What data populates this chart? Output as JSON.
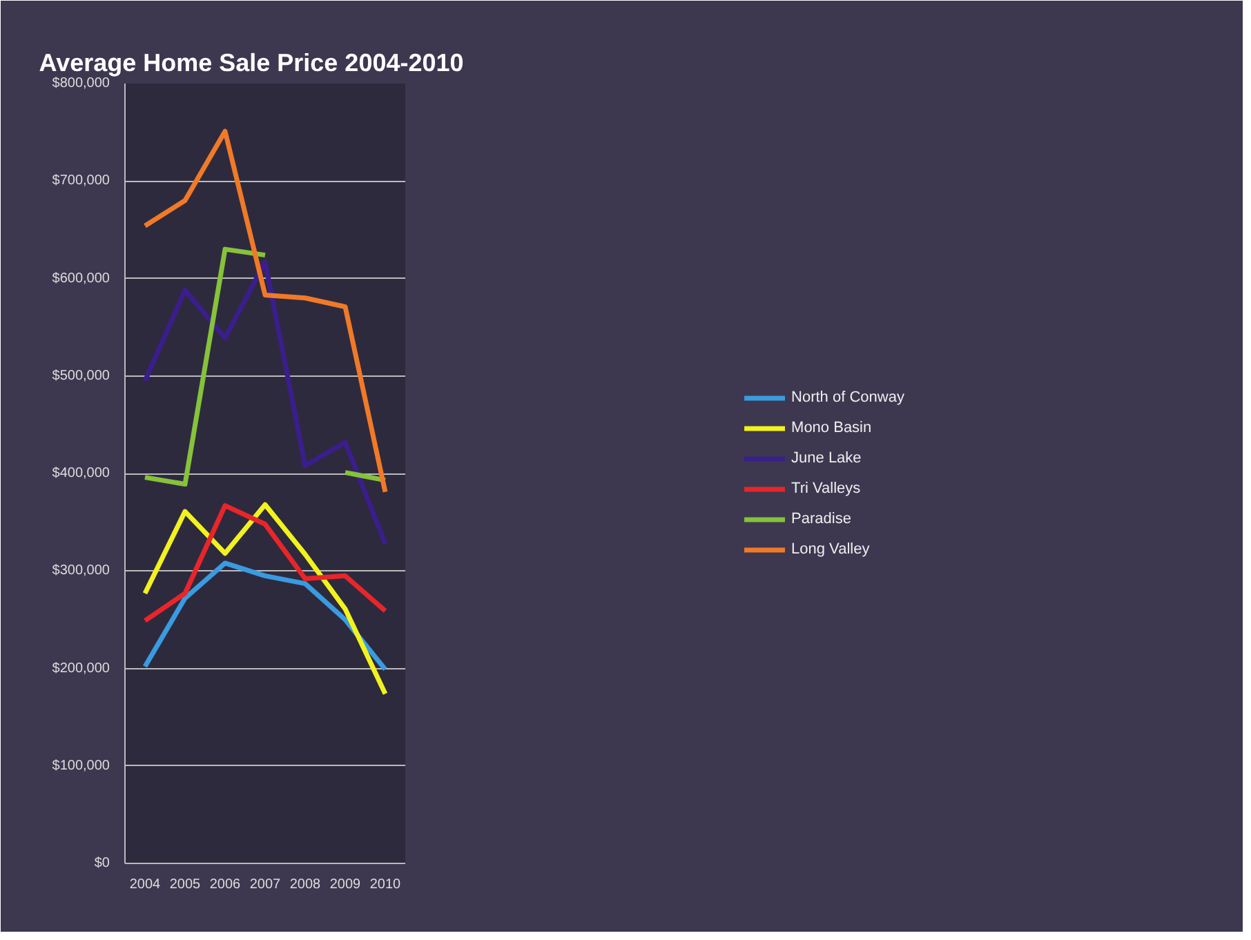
{
  "chart_data": {
    "type": "line",
    "title": "Average Home Sale Price     2004-2010",
    "categories": [
      "2004",
      "2005",
      "2006",
      "2007",
      "2008",
      "2009",
      "2010"
    ],
    "series": [
      {
        "name": "North of Conway",
        "color": "#3a9be0",
        "values": [
          202000,
          272000,
          308000,
          295000,
          287000,
          250000,
          199000
        ]
      },
      {
        "name": "Mono Basin",
        "color": "#f2f21e",
        "values": [
          277000,
          361000,
          318000,
          368000,
          317000,
          261000,
          174000
        ]
      },
      {
        "name": "June Lake",
        "color": "#3a1e8c",
        "values": [
          495000,
          588000,
          539000,
          617000,
          408000,
          432000,
          328000
        ]
      },
      {
        "name": "Tri Valleys",
        "color": "#e8262a",
        "values": [
          249000,
          277000,
          367000,
          348000,
          292000,
          295000,
          259000
        ]
      },
      {
        "name": "Paradise",
        "color": "#86c23a",
        "values": [
          396000,
          389000,
          630000,
          624000,
          null,
          401000,
          393000
        ]
      },
      {
        "name": "Long Valley",
        "color": "#f07a28",
        "values": [
          654000,
          680000,
          751000,
          583000,
          580000,
          571000,
          381000
        ]
      }
    ],
    "ylim": [
      0,
      800000
    ],
    "yticks": [
      {
        "value": 0,
        "label": "$0"
      },
      {
        "value": 100000,
        "label": "$100,000"
      },
      {
        "value": 200000,
        "label": "$200,000"
      },
      {
        "value": 300000,
        "label": "$300,000"
      },
      {
        "value": 400000,
        "label": "$400,000"
      },
      {
        "value": 500000,
        "label": "$500,000"
      },
      {
        "value": 600000,
        "label": "$600,000"
      },
      {
        "value": 700000,
        "label": "$700,000"
      },
      {
        "value": 800000,
        "label": "$800,000"
      }
    ],
    "grid": "y",
    "legend": "right",
    "marker": "none",
    "line_style": "solid"
  }
}
